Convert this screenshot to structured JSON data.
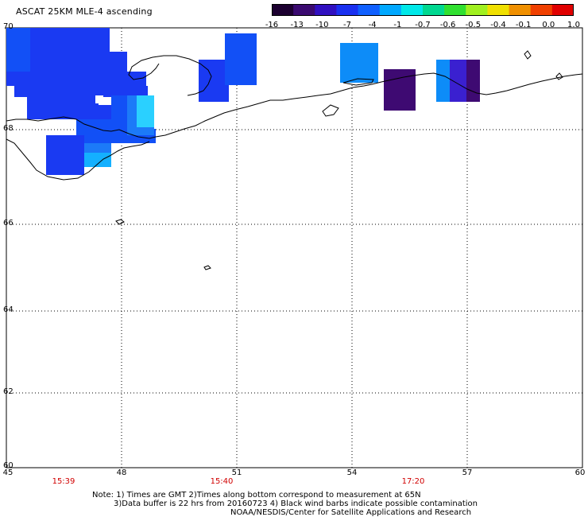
{
  "title": "ASCAT 25KM MLE-4 ascending",
  "colorbar": {
    "tick_labels": [
      "-16",
      "-13",
      "-10",
      "-7",
      "-4",
      "-1",
      "-0.7",
      "-0.6",
      "-0.5",
      "-0.4",
      "-0.1",
      "0.0",
      "1.0"
    ],
    "colors": [
      "#1c0030",
      "#3a0a70",
      "#3010c0",
      "#1a30f0",
      "#1060ff",
      "#00a8ff",
      "#00e8e8",
      "#00d890",
      "#30e030",
      "#a0f020",
      "#f0e000",
      "#f09000",
      "#f04000",
      "#e00000"
    ]
  },
  "map": {
    "lat_labels": [
      "70",
      "68",
      "66",
      "64",
      "62",
      "60"
    ],
    "lon_labels": [
      "45",
      "48",
      "51",
      "54",
      "57",
      "60"
    ],
    "time_labels": [
      {
        "text": "15:39",
        "lon": 46.5
      },
      {
        "text": "15:40",
        "lon": 50.6
      },
      {
        "text": "17:20",
        "lon": 55.6
      }
    ],
    "pixel_color_names": [
      "blue",
      "medium-blue",
      "light-blue",
      "cyan",
      "dark-purple",
      "indigo"
    ]
  },
  "notes": {
    "line1": "Note: 1) Times are GMT 2)Times along bottom correspond to measurement at 65N",
    "line2": "3)Data buffer is 22 hrs from 20160723 4) Black wind barbs indicate possible contamination",
    "line3": "NOAA/NESDIS/Center for Satellite Applications and Research"
  }
}
